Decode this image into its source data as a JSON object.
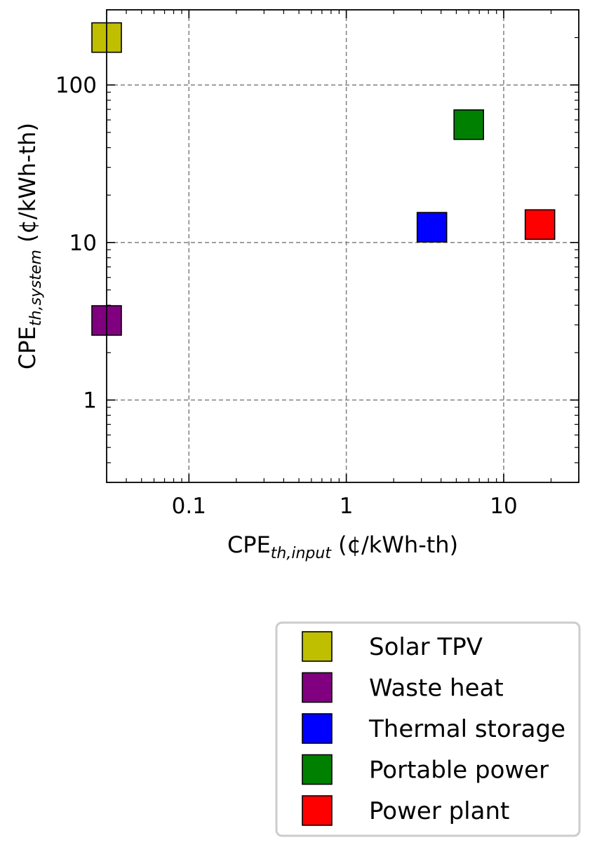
{
  "chart_data": {
    "type": "scatter",
    "title": "",
    "xlabel": {
      "base": "CPE",
      "sub": "th,input",
      "unit": " (¢/kWh-th)"
    },
    "ylabel": {
      "base": "CPE",
      "sub": "th,system",
      "unit": " (¢/kWh-th)"
    },
    "x_scale": "log",
    "y_scale": "log",
    "xlim": [
      0.03,
      30
    ],
    "ylim": [
      0.3,
      300
    ],
    "x_ticks": [
      {
        "value": 0.1,
        "label": "0.1"
      },
      {
        "value": 1,
        "label": "1"
      },
      {
        "value": 10,
        "label": "10"
      }
    ],
    "y_ticks": [
      {
        "value": 1,
        "label": "1"
      },
      {
        "value": 10,
        "label": "10"
      },
      {
        "value": 100,
        "label": "100"
      }
    ],
    "grid": true,
    "legend_position": "below-right",
    "marker": "square",
    "series": [
      {
        "name": "Solar TPV",
        "color": "#bfbf00",
        "x": 0.03,
        "y": 200
      },
      {
        "name": "Waste heat",
        "color": "#800080",
        "x": 0.03,
        "y": 3.2
      },
      {
        "name": "Thermal storage",
        "color": "#0000ff",
        "x": 3.5,
        "y": 12.5
      },
      {
        "name": "Portable power",
        "color": "#008000",
        "x": 6,
        "y": 56
      },
      {
        "name": "Power plant",
        "color": "#ff0000",
        "x": 17,
        "y": 13
      }
    ]
  }
}
